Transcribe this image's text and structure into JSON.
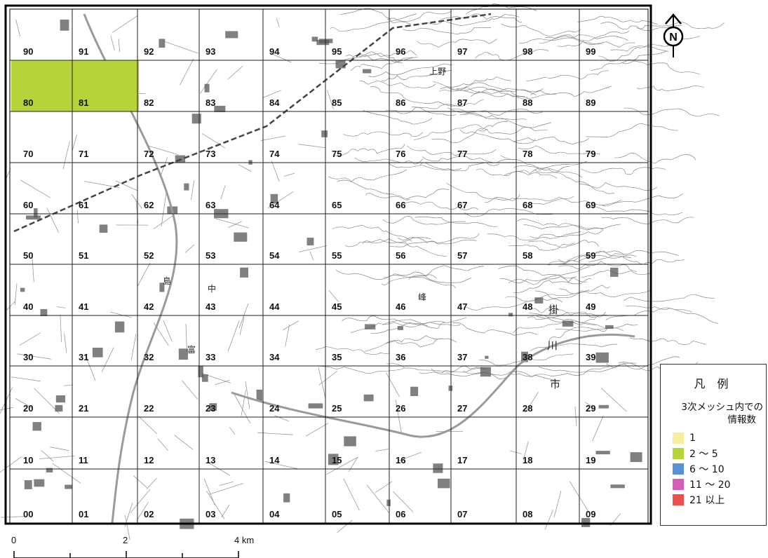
{
  "map": {
    "grid_labels": [
      [
        "90",
        "91",
        "92",
        "93",
        "94",
        "95",
        "96",
        "97",
        "98",
        "99"
      ],
      [
        "80",
        "81",
        "82",
        "83",
        "84",
        "85",
        "86",
        "87",
        "88",
        "89"
      ],
      [
        "70",
        "71",
        "72",
        "73",
        "74",
        "75",
        "76",
        "77",
        "78",
        "79"
      ],
      [
        "60",
        "61",
        "62",
        "63",
        "64",
        "65",
        "66",
        "67",
        "68",
        "69"
      ],
      [
        "50",
        "51",
        "52",
        "53",
        "54",
        "55",
        "56",
        "57",
        "58",
        "59"
      ],
      [
        "40",
        "41",
        "42",
        "43",
        "44",
        "45",
        "46",
        "47",
        "48",
        "49"
      ],
      [
        "30",
        "31",
        "32",
        "33",
        "34",
        "35",
        "36",
        "37",
        "38",
        "39"
      ],
      [
        "20",
        "21",
        "22",
        "23",
        "24",
        "25",
        "26",
        "27",
        "28",
        "29"
      ],
      [
        "10",
        "11",
        "12",
        "13",
        "14",
        "15",
        "16",
        "17",
        "18",
        "19"
      ],
      [
        "00",
        "01",
        "02",
        "03",
        "04",
        "05",
        "06",
        "07",
        "08",
        "09"
      ]
    ],
    "highlighted_cells": [
      {
        "label": "80",
        "category": "2 ～ 5"
      },
      {
        "label": "81",
        "category": "2 ～ 5"
      }
    ],
    "place_labels": {
      "ueno": "上野",
      "kakegawa_kake": "掛",
      "kakegawa_gawa": "川",
      "shi": "市",
      "shima": "島",
      "mine": "峰",
      "naka": "中",
      "tomi": "富"
    }
  },
  "north_arrow": {
    "symbol": "N"
  },
  "scale_bar": {
    "labels": [
      "0",
      "2",
      "4 km"
    ]
  },
  "legend": {
    "title": "凡 例",
    "subtitle_line1": "3次メッシュ内での",
    "subtitle_line2": "情報数",
    "items": [
      {
        "label": "1",
        "color": "#f7ef9e"
      },
      {
        "label": "2 ～ 5",
        "color": "#b6d43a"
      },
      {
        "label": "6 ～ 10",
        "color": "#5b8fd6"
      },
      {
        "label": "11 ～ 20",
        "color": "#d35fb8"
      },
      {
        "label": "21 以上",
        "color": "#e8524a"
      }
    ]
  }
}
